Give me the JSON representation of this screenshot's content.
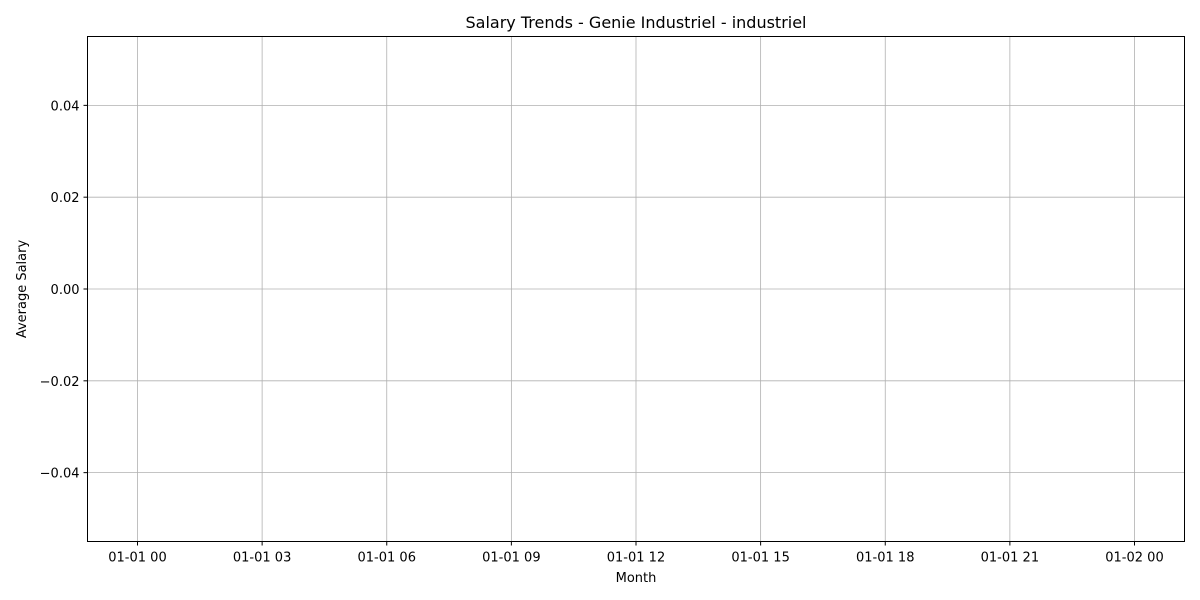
{
  "chart_data": {
    "type": "line",
    "title": "Salary Trends - Genie Industriel - industriel",
    "xlabel": "Month",
    "ylabel": "Average Salary",
    "x_ticks": [
      "01-01 00",
      "01-01 03",
      "01-01 06",
      "01-01 09",
      "01-01 12",
      "01-01 15",
      "01-01 18",
      "01-01 21",
      "01-02 00"
    ],
    "y_ticks": [
      0.04,
      0.02,
      0.0,
      -0.02,
      -0.04
    ],
    "y_tick_labels": [
      "0.04",
      "0.02",
      "0.00",
      "−0.02",
      "−0.04"
    ],
    "ylim": [
      -0.055,
      0.055
    ],
    "series": [],
    "grid": true,
    "colors": {
      "grid": "#b0b0b0",
      "axis": "#000000",
      "background": "#ffffff"
    }
  }
}
